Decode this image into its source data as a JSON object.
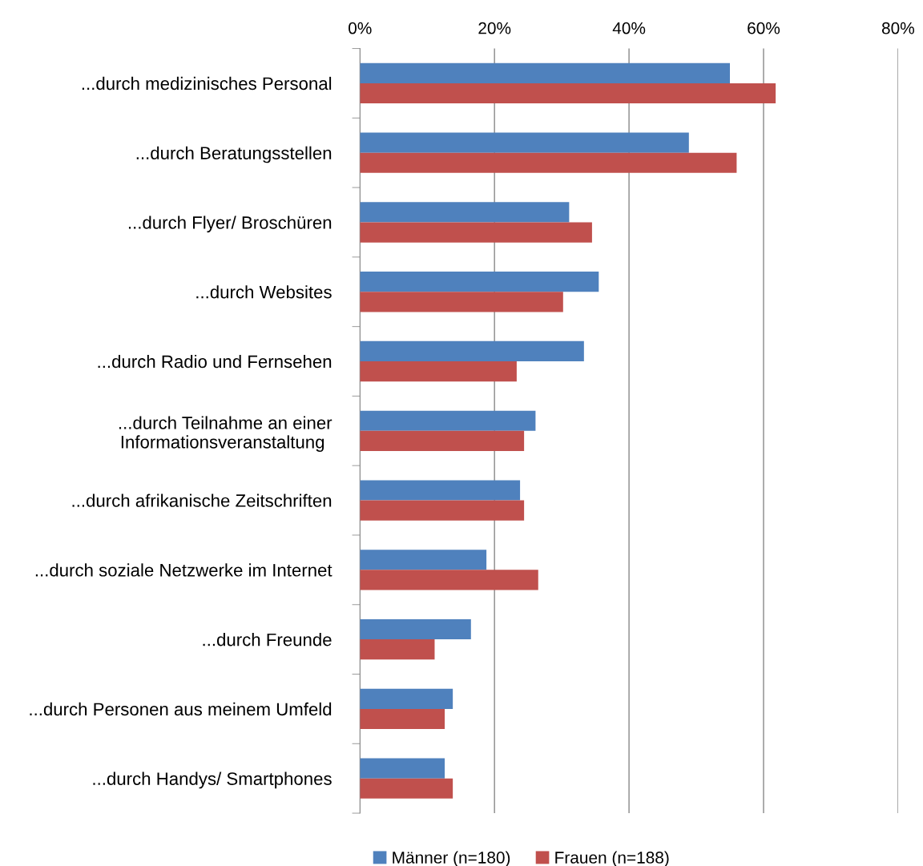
{
  "chart_data": {
    "type": "bar",
    "orientation": "horizontal",
    "categories": [
      "...durch medizinisches Personal",
      "...durch Beratungsstellen",
      "...durch Flyer/ Broschüren",
      "...durch Websites",
      "...durch Radio und Fernsehen",
      "...durch Teilnahme an einer\nInformationsveranstaltung ",
      "...durch afrikanische Zeitschriften",
      "...durch soziale Netzwerke im Internet",
      "...durch Freunde",
      "...durch Personen aus meinem Umfeld",
      "...durch Handys/ Smartphones"
    ],
    "series": [
      {
        "name": "Männer (n=180)",
        "color": "#4f81bd",
        "values": [
          55.0,
          48.9,
          31.1,
          35.5,
          33.3,
          26.1,
          23.8,
          18.8,
          16.5,
          13.8,
          12.6
        ]
      },
      {
        "name": "Frauen (n=188)",
        "color": "#c0504d",
        "values": [
          61.8,
          56.0,
          34.5,
          30.2,
          23.3,
          24.4,
          24.4,
          26.5,
          11.1,
          12.6,
          13.8
        ]
      }
    ],
    "xlim": [
      0,
      80
    ],
    "xticks": [
      {
        "value": 0,
        "label": "0%"
      },
      {
        "value": 20,
        "label": "20%"
      },
      {
        "value": 40,
        "label": "40%"
      },
      {
        "value": 60,
        "label": "60%"
      },
      {
        "value": 80,
        "label": "80%"
      }
    ],
    "grid": "x",
    "legend": "bottom"
  }
}
